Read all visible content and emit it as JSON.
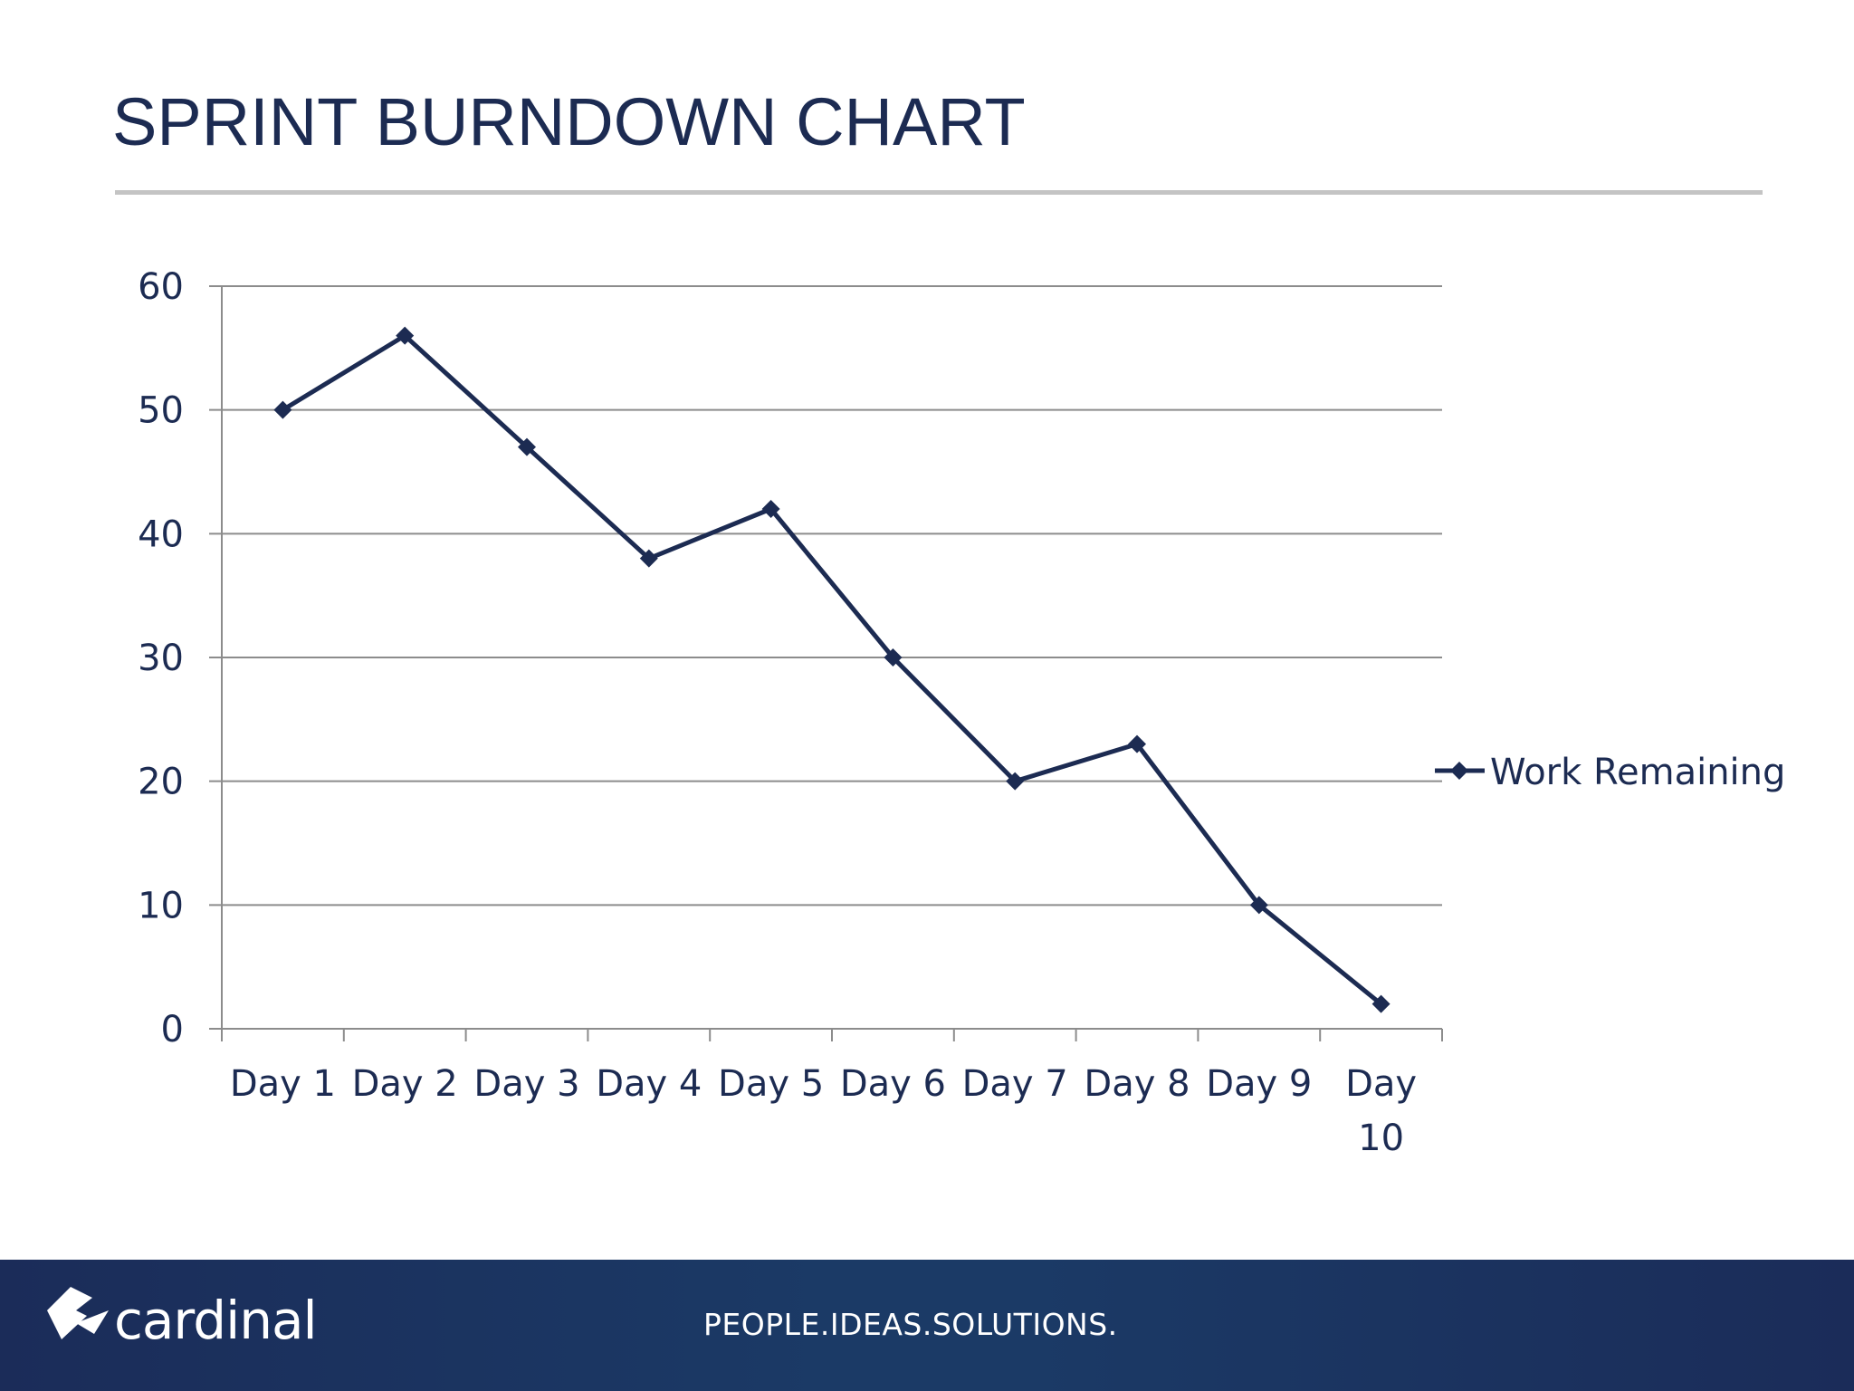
{
  "slide": {
    "title": "SPRINT BURNDOWN CHART"
  },
  "footer": {
    "logo_text": "cardinal",
    "tagline": "PEOPLE.IDEAS.SOLUTIONS."
  },
  "colors": {
    "title": "#1c2b52",
    "series": "#1c2b52",
    "footer_bg": "#1b2c59",
    "gridline": "#8c8c8c"
  },
  "chart_data": {
    "type": "line",
    "categories": [
      "Day 1",
      "Day 2",
      "Day 3",
      "Day 4",
      "Day 5",
      "Day 6",
      "Day 7",
      "Day 8",
      "Day 9",
      "Day 10"
    ],
    "series": [
      {
        "name": "Work Remaining",
        "values": [
          50,
          56,
          47,
          38,
          42,
          30,
          20,
          23,
          10,
          2
        ],
        "marker": "diamond"
      }
    ],
    "ylim": [
      0,
      60
    ],
    "yticks": [
      0,
      10,
      20,
      30,
      40,
      50,
      60
    ],
    "title": "",
    "xlabel": "",
    "ylabel": "",
    "grid": true,
    "legend_position": "right"
  }
}
